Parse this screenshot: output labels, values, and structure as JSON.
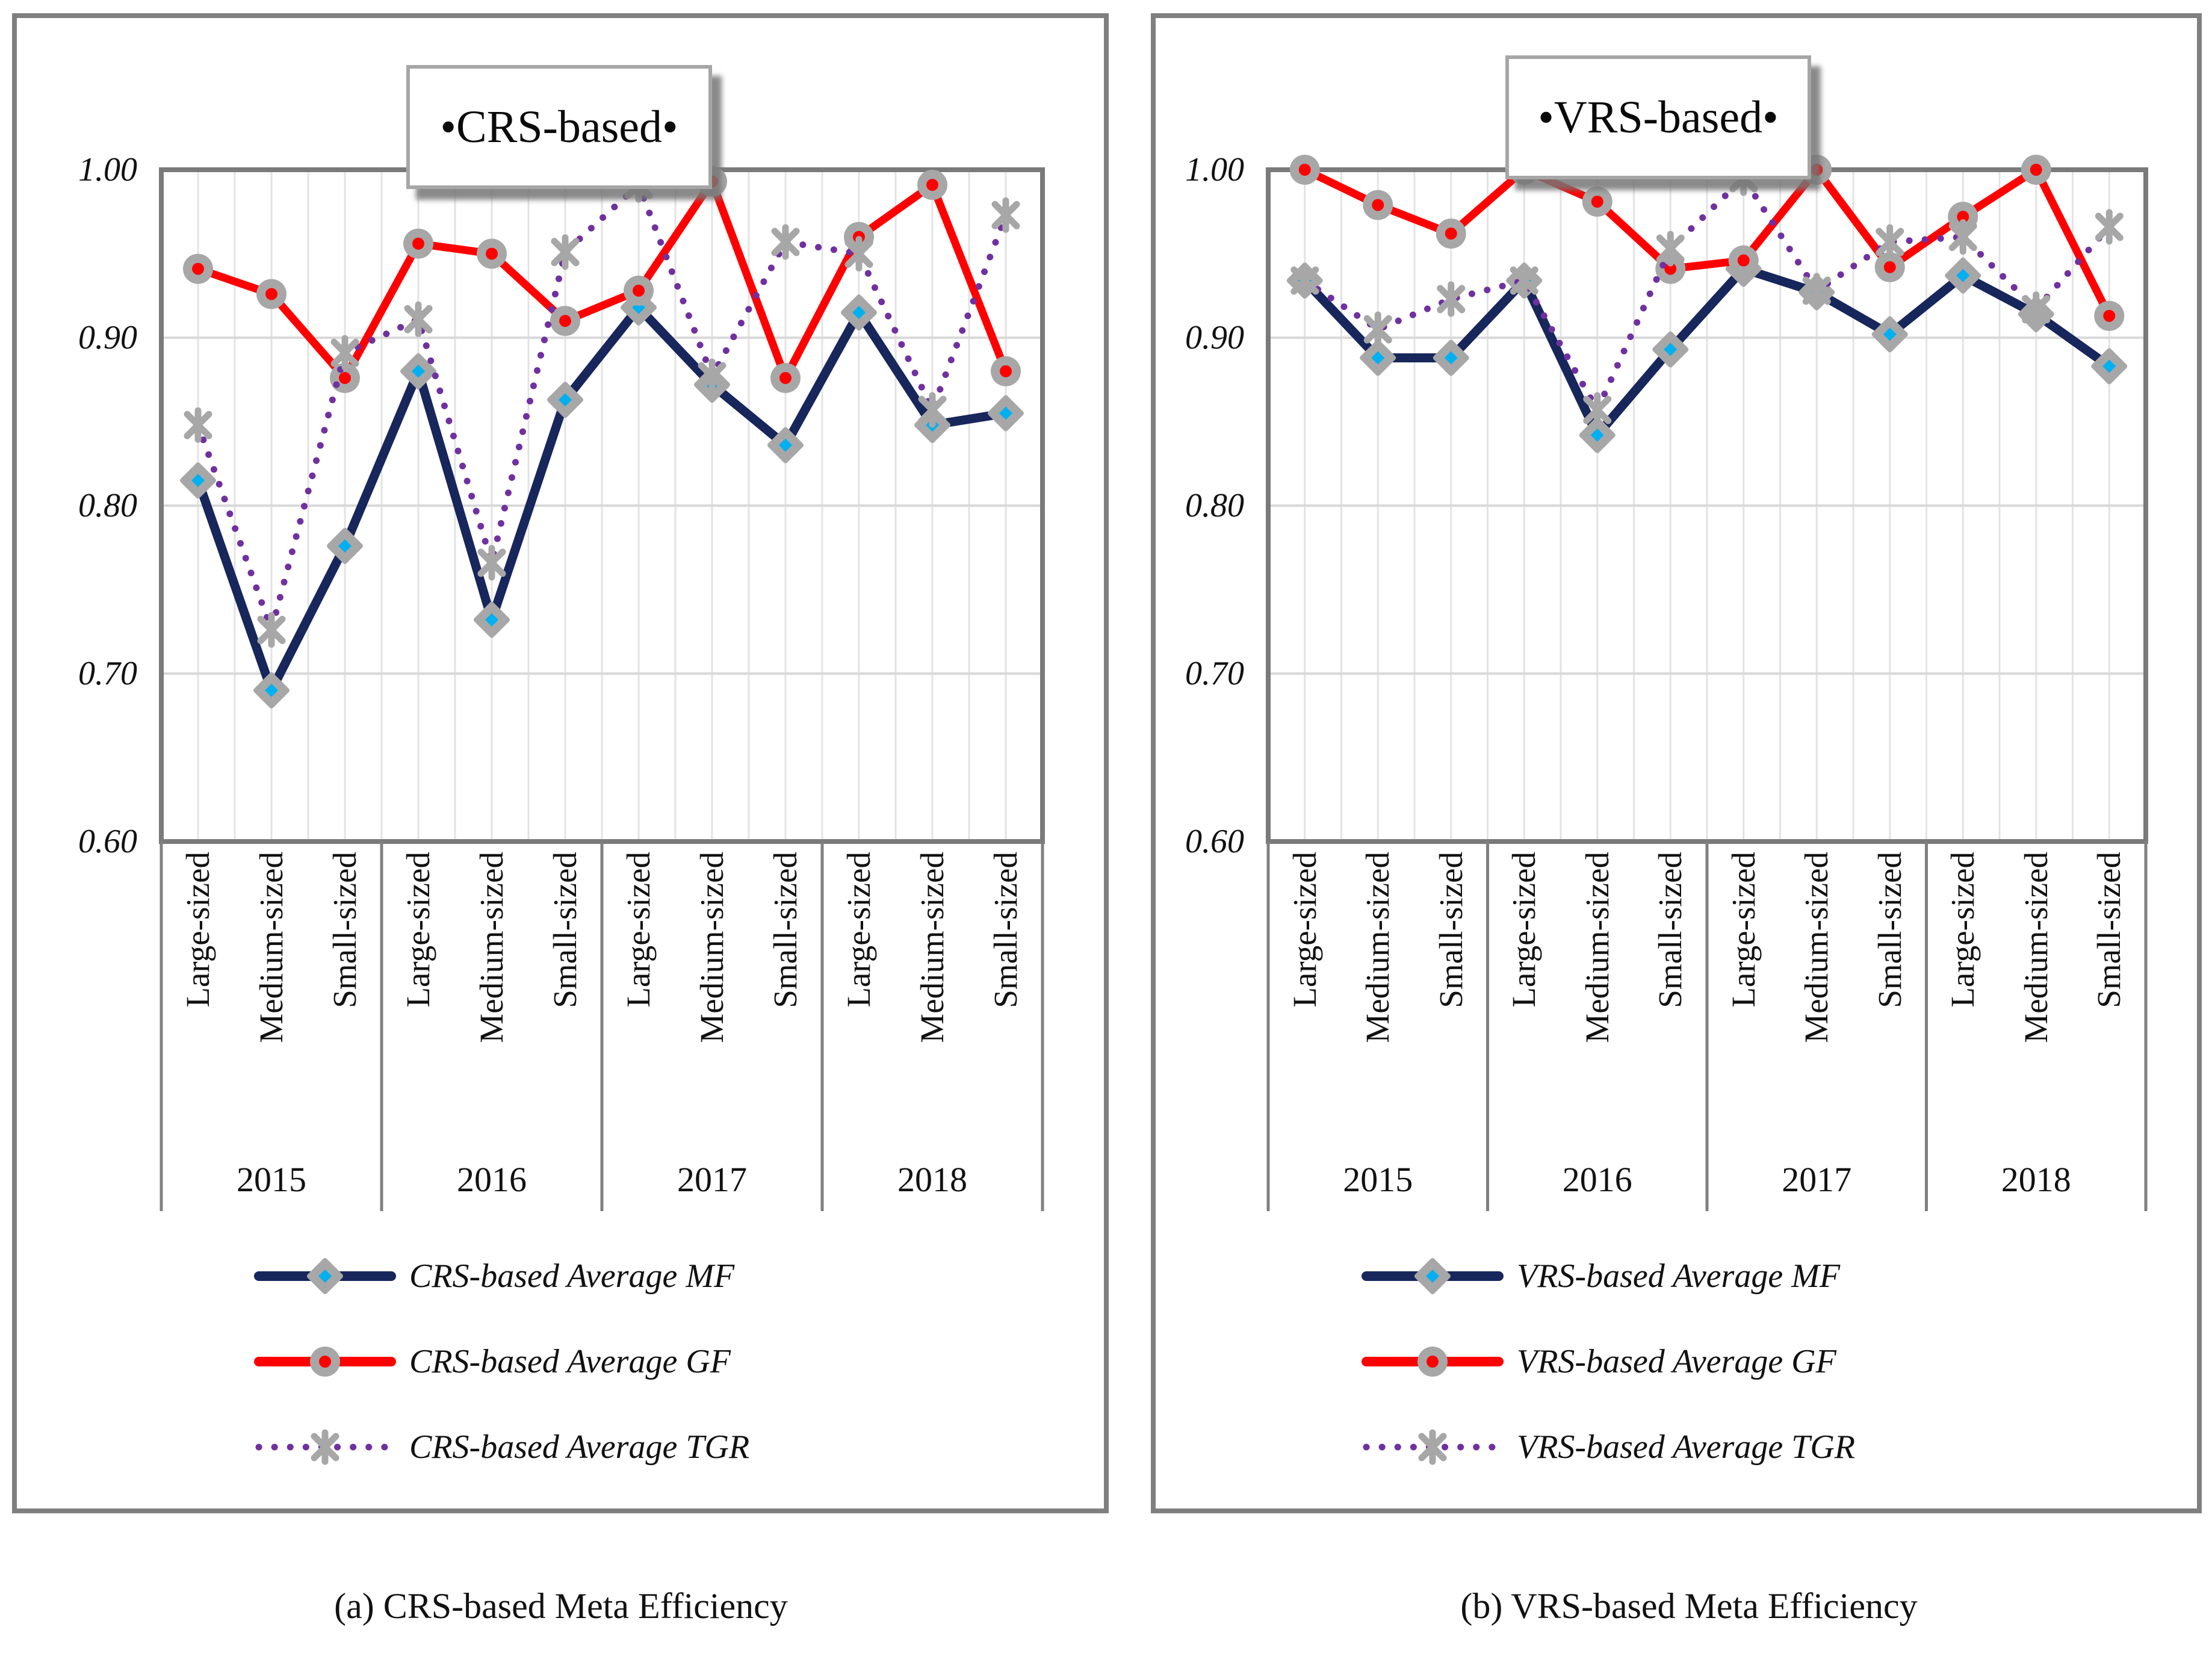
{
  "chart_data": [
    {
      "type": "line",
      "title": "•CRS-based•",
      "caption": "(a) CRS-based Meta Efficiency",
      "categories": [
        "Large-sized",
        "Medium-sized",
        "Small-sized",
        "Large-sized",
        "Medium-sized",
        "Small-sized",
        "Large-sized",
        "Medium-sized",
        "Small-sized",
        "Large-sized",
        "Medium-sized",
        "Small-sized"
      ],
      "year_groups": [
        "2015",
        "2016",
        "2017",
        "2018"
      ],
      "ylim": [
        0.6,
        1.0
      ],
      "ytick_labels": [
        "1.00",
        "0.90",
        "0.80",
        "0.70",
        "0.60"
      ],
      "grid": true,
      "legend_position": "bottom",
      "series": [
        {
          "name": "CRS-based Average MF",
          "color": "#17265B",
          "style": "solid",
          "marker": "diamond",
          "marker_outline_color": "#A7A7A7",
          "marker_fill": "#00B0F0",
          "values": [
            0.815,
            0.69,
            0.776,
            0.88,
            0.732,
            0.863,
            0.918,
            0.872,
            0.836,
            0.915,
            0.848,
            0.855
          ]
        },
        {
          "name": "CRS-based Average GF",
          "color": "#FF0000",
          "style": "solid",
          "marker": "circle",
          "marker_outline_color": "#A7A7A7",
          "marker_fill": "#FF0000",
          "values": [
            0.941,
            0.926,
            0.876,
            0.956,
            0.95,
            0.91,
            0.928,
            0.993,
            0.876,
            0.96,
            0.991,
            0.88
          ]
        },
        {
          "name": "CRS-based Average TGR",
          "color": "#7030A0",
          "style": "dotted",
          "marker": "asterisk",
          "marker_outline_color": "#A7A7A7",
          "marker_fill": "#A7A7A7",
          "values": [
            0.848,
            0.726,
            0.891,
            0.911,
            0.766,
            0.951,
            0.991,
            0.877,
            0.957,
            0.95,
            0.857,
            0.973
          ]
        }
      ]
    },
    {
      "type": "line",
      "title": "•VRS-based•",
      "caption": "(b) VRS-based Meta Efficiency",
      "categories": [
        "Large-sized",
        "Medium-sized",
        "Small-sized",
        "Large-sized",
        "Medium-sized",
        "Small-sized",
        "Large-sized",
        "Medium-sized",
        "Small-sized",
        "Large-sized",
        "Medium-sized",
        "Small-sized"
      ],
      "year_groups": [
        "2015",
        "2016",
        "2017",
        "2018"
      ],
      "ylim": [
        0.6,
        1.0
      ],
      "ytick_labels": [
        "1.00",
        "0.90",
        "0.80",
        "0.70",
        "0.60"
      ],
      "grid": true,
      "legend_position": "bottom",
      "series": [
        {
          "name": "VRS-based Average MF",
          "color": "#17265B",
          "style": "solid",
          "marker": "diamond",
          "marker_outline_color": "#A7A7A7",
          "marker_fill": "#00B0F0",
          "values": [
            0.934,
            0.888,
            0.888,
            0.934,
            0.842,
            0.893,
            0.941,
            0.927,
            0.902,
            0.937,
            0.914,
            0.883
          ]
        },
        {
          "name": "VRS-based Average GF",
          "color": "#FF0000",
          "style": "solid",
          "marker": "circle",
          "marker_outline_color": "#A7A7A7",
          "marker_fill": "#FF0000",
          "values": [
            1.0,
            0.979,
            0.962,
            1.0,
            0.981,
            0.941,
            0.946,
            1.0,
            0.942,
            0.972,
            1.0,
            0.913
          ]
        },
        {
          "name": "VRS-based Average TGR",
          "color": "#7030A0",
          "style": "dotted",
          "marker": "asterisk",
          "marker_outline_color": "#A7A7A7",
          "marker_fill": "#A7A7A7",
          "values": [
            0.934,
            0.905,
            0.923,
            0.934,
            0.857,
            0.953,
            0.995,
            0.928,
            0.957,
            0.96,
            0.917,
            0.966
          ]
        }
      ]
    }
  ]
}
